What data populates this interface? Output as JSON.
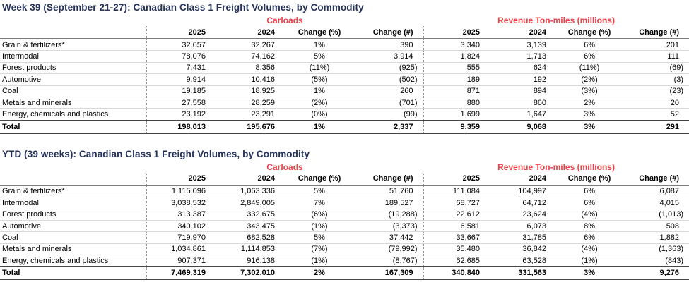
{
  "colors": {
    "accent_red": "#ee3f48",
    "title_navy": "#24325a"
  },
  "tables": [
    {
      "title": "Week 39 (September 21-27): Canadian Class 1 Freight Volumes, by Commodity",
      "group_headers": [
        "Carloads",
        "Revenue Ton-miles (millions)"
      ],
      "columns": [
        "2025",
        "2024",
        "Change (%)",
        "Change (#)",
        "2025",
        "2024",
        "Change (%)",
        "Change (#)"
      ],
      "rows": [
        {
          "label": "Grain & fertilizers*",
          "values": [
            "32,657",
            "32,267",
            "1%",
            "390",
            "3,340",
            "3,139",
            "6%",
            "201"
          ]
        },
        {
          "label": "Intermodal",
          "values": [
            "78,076",
            "74,162",
            "5%",
            "3,914",
            "1,824",
            "1,713",
            "6%",
            "111"
          ]
        },
        {
          "label": "Forest products",
          "values": [
            "7,431",
            "8,356",
            "(11%)",
            "(925)",
            "555",
            "624",
            "(11%)",
            "(69)"
          ]
        },
        {
          "label": "Automotive",
          "values": [
            "9,914",
            "10,416",
            "(5%)",
            "(502)",
            "189",
            "192",
            "(2%)",
            "(3)"
          ]
        },
        {
          "label": "Coal",
          "values": [
            "19,185",
            "18,925",
            "1%",
            "260",
            "871",
            "894",
            "(3%)",
            "(23)"
          ]
        },
        {
          "label": "Metals and minerals",
          "values": [
            "27,558",
            "28,259",
            "(2%)",
            "(701)",
            "880",
            "860",
            "2%",
            "20"
          ]
        },
        {
          "label": "Energy, chemicals and plastics",
          "values": [
            "23,192",
            "23,291",
            "(0%)",
            "(99)",
            "1,699",
            "1,647",
            "3%",
            "52"
          ]
        }
      ],
      "total": {
        "label": "Total",
        "values": [
          "198,013",
          "195,676",
          "1%",
          "2,337",
          "9,359",
          "9,068",
          "3%",
          "291"
        ]
      }
    },
    {
      "title": "YTD (39 weeks): Canadian Class 1 Freight Volumes, by Commodity",
      "group_headers": [
        "Carloads",
        "Revenue Ton-miles (millions)"
      ],
      "columns": [
        "2025",
        "2024",
        "Change (%)",
        "Change (#)",
        "2025",
        "2024",
        "Change (%)",
        "Change (#)"
      ],
      "rows": [
        {
          "label": "Grain & fertilizers*",
          "values": [
            "1,115,096",
            "1,063,336",
            "5%",
            "51,760",
            "111,084",
            "104,997",
            "6%",
            "6,087"
          ]
        },
        {
          "label": "Intermodal",
          "values": [
            "3,038,532",
            "2,849,005",
            "7%",
            "189,527",
            "68,727",
            "64,712",
            "6%",
            "4,015"
          ]
        },
        {
          "label": "Forest products",
          "values": [
            "313,387",
            "332,675",
            "(6%)",
            "(19,288)",
            "22,612",
            "23,624",
            "(4%)",
            "(1,013)"
          ]
        },
        {
          "label": "Automotive",
          "values": [
            "340,102",
            "343,475",
            "(1%)",
            "(3,373)",
            "6,581",
            "6,073",
            "8%",
            "508"
          ]
        },
        {
          "label": "Coal",
          "values": [
            "719,970",
            "682,528",
            "5%",
            "37,442",
            "33,667",
            "31,785",
            "6%",
            "1,882"
          ]
        },
        {
          "label": "Metals and minerals",
          "values": [
            "1,034,861",
            "1,114,853",
            "(7%)",
            "(79,992)",
            "35,480",
            "36,842",
            "(4%)",
            "(1,363)"
          ]
        },
        {
          "label": "Energy, chemicals and plastics",
          "values": [
            "907,371",
            "916,138",
            "(1%)",
            "(8,767)",
            "62,685",
            "63,528",
            "(1%)",
            "(843)"
          ]
        }
      ],
      "total": {
        "label": "Total",
        "values": [
          "7,469,319",
          "7,302,010",
          "2%",
          "167,309",
          "340,840",
          "331,563",
          "3%",
          "9,276"
        ]
      }
    }
  ]
}
